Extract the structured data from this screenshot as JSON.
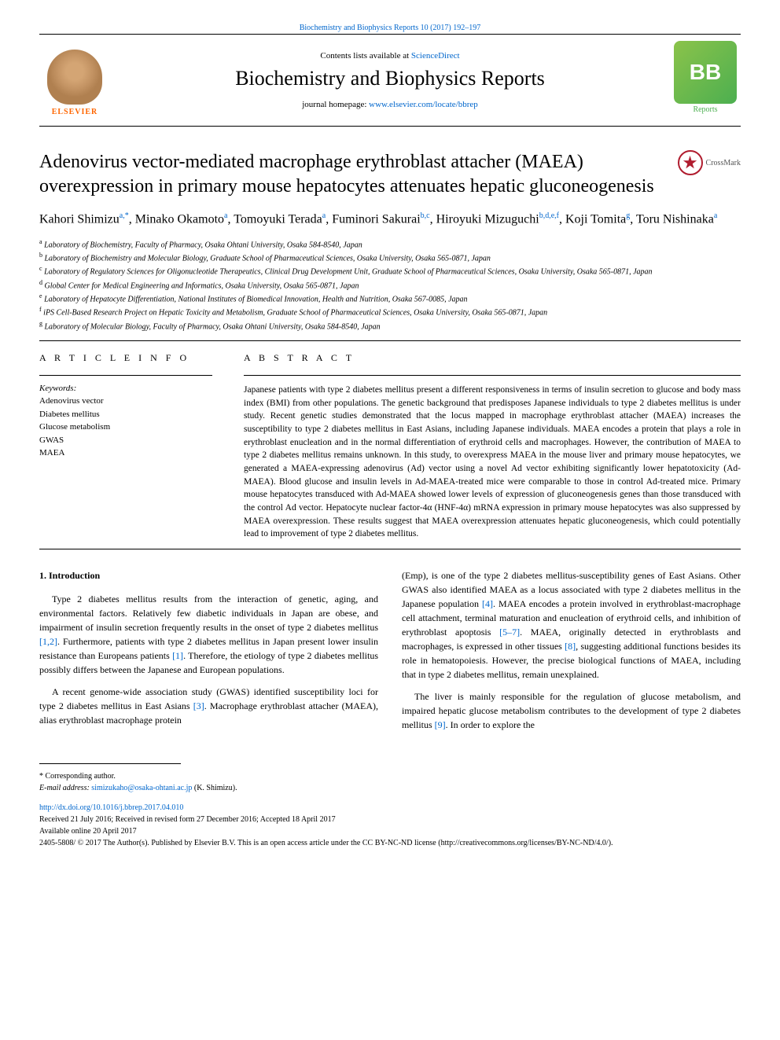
{
  "header": {
    "journal_ref": "Biochemistry and Biophysics Reports 10 (2017) 192–197",
    "contents_prefix": "Contents lists available at ",
    "contents_link": "ScienceDirect",
    "journal_name": "Biochemistry and Biophysics Reports",
    "homepage_prefix": "journal homepage: ",
    "homepage_url": "www.elsevier.com/locate/bbrep",
    "publisher_logo_text": "ELSEVIER",
    "bb_logo_text": "BB",
    "bb_logo_label": "Reports"
  },
  "crossmark_label": "CrossMark",
  "title": "Adenovirus vector-mediated macrophage erythroblast attacher (MAEA) overexpression in primary mouse hepatocytes attenuates hepatic gluconeogenesis",
  "authors_html": "Kahori Shimizu<sup>a,*</sup>, Minako Okamoto<sup>a</sup>, Tomoyuki Terada<sup>a</sup>, Fuminori Sakurai<sup>b,c</sup>, Hiroyuki Mizuguchi<sup>b,d,e,f</sup>, Koji Tomita<sup>g</sup>, Toru Nishinaka<sup>a</sup>",
  "affiliations": [
    {
      "sup": "a",
      "text": "Laboratory of Biochemistry, Faculty of Pharmacy, Osaka Ohtani University, Osaka 584-8540, Japan"
    },
    {
      "sup": "b",
      "text": "Laboratory of Biochemistry and Molecular Biology, Graduate School of Pharmaceutical Sciences, Osaka University, Osaka 565-0871, Japan"
    },
    {
      "sup": "c",
      "text": "Laboratory of Regulatory Sciences for Oligonucleotide Therapeutics, Clinical Drug Development Unit, Graduate School of Pharmaceutical Sciences, Osaka University, Osaka 565-0871, Japan"
    },
    {
      "sup": "d",
      "text": "Global Center for Medical Engineering and Informatics, Osaka University, Osaka 565-0871, Japan"
    },
    {
      "sup": "e",
      "text": "Laboratory of Hepatocyte Differentiation, National Institutes of Biomedical Innovation, Health and Nutrition, Osaka 567-0085, Japan"
    },
    {
      "sup": "f",
      "text": "iPS Cell-Based Research Project on Hepatic Toxicity and Metabolism, Graduate School of Pharmaceutical Sciences, Osaka University, Osaka 565-0871, Japan"
    },
    {
      "sup": "g",
      "text": "Laboratory of Molecular Biology, Faculty of Pharmacy, Osaka Ohtani University, Osaka 584-8540, Japan"
    }
  ],
  "article_info": {
    "heading": "A R T I C L E  I N F O",
    "keywords_label": "Keywords:",
    "keywords": [
      "Adenovirus vector",
      "Diabetes mellitus",
      "Glucose metabolism",
      "GWAS",
      "MAEA"
    ]
  },
  "abstract": {
    "heading": "A B S T R A C T",
    "text": "Japanese patients with type 2 diabetes mellitus present a different responsiveness in terms of insulin secretion to glucose and body mass index (BMI) from other populations. The genetic background that predisposes Japanese individuals to type 2 diabetes mellitus is under study. Recent genetic studies demonstrated that the locus mapped in macrophage erythroblast attacher (MAEA) increases the susceptibility to type 2 diabetes mellitus in East Asians, including Japanese individuals. MAEA encodes a protein that plays a role in erythroblast enucleation and in the normal differentiation of erythroid cells and macrophages. However, the contribution of MAEA to type 2 diabetes mellitus remains unknown. In this study, to overexpress MAEA in the mouse liver and primary mouse hepatocytes, we generated a MAEA-expressing adenovirus (Ad) vector using a novel Ad vector exhibiting significantly lower hepatotoxicity (Ad-MAEA). Blood glucose and insulin levels in Ad-MAEA-treated mice were comparable to those in control Ad-treated mice. Primary mouse hepatocytes transduced with Ad-MAEA showed lower levels of expression of gluconeogenesis genes than those transduced with the control Ad vector. Hepatocyte nuclear factor-4α (HNF-4α) mRNA expression in primary mouse hepatocytes was also suppressed by MAEA overexpression. These results suggest that MAEA overexpression attenuates hepatic gluconeogenesis, which could potentially lead to improvement of type 2 diabetes mellitus."
  },
  "body": {
    "section_heading": "1. Introduction",
    "col1_p1": "Type 2 diabetes mellitus results from the interaction of genetic, aging, and environmental factors. Relatively few diabetic individuals in Japan are obese, and impairment of insulin secretion frequently results in the onset of type 2 diabetes mellitus [1,2]. Furthermore, patients with type 2 diabetes mellitus in Japan present lower insulin resistance than Europeans patients [1]. Therefore, the etiology of type 2 diabetes mellitus possibly differs between the Japanese and European populations.",
    "col1_p2": "A recent genome-wide association study (GWAS) identified susceptibility loci for type 2 diabetes mellitus in East Asians [3]. Macrophage erythroblast attacher (MAEA), alias erythroblast macrophage protein",
    "col2_p1": "(Emp), is one of the type 2 diabetes mellitus-susceptibility genes of East Asians. Other GWAS also identified MAEA as a locus associated with type 2 diabetes mellitus in the Japanese population [4]. MAEA encodes a protein involved in erythroblast-macrophage cell attachment, terminal maturation and enucleation of erythroid cells, and inhibition of erythroblast apoptosis [5–7]. MAEA, originally detected in erythroblasts and macrophages, is expressed in other tissues [8], suggesting additional functions besides its role in hematopoiesis. However, the precise biological functions of MAEA, including that in type 2 diabetes mellitus, remain unexplained.",
    "col2_p2": "The liver is mainly responsible for the regulation of glucose metabolism, and impaired hepatic glucose metabolism contributes to the development of type 2 diabetes mellitus [9]. In order to explore the"
  },
  "footer": {
    "corresponding": "* Corresponding author.",
    "email_label": "E-mail address: ",
    "email": "simizukaho@osaka-ohtani.ac.jp",
    "email_suffix": " (K. Shimizu).",
    "doi": "http://dx.doi.org/10.1016/j.bbrep.2017.04.010",
    "received": "Received 21 July 2016; Received in revised form 27 December 2016; Accepted 18 April 2017",
    "available": "Available online 20 April 2017",
    "copyright": "2405-5808/ © 2017 The Author(s). Published by Elsevier B.V. This is an open access article under the CC BY-NC-ND license (http://creativecommons.org/licenses/BY-NC-ND/4.0/)."
  },
  "colors": {
    "link": "#0066cc",
    "elsevier_orange": "#ff6600",
    "bb_green_light": "#8bc34a",
    "bb_green_dark": "#4caf50",
    "crossmark_red": "#b01c2e",
    "text": "#000000",
    "background": "#ffffff"
  },
  "typography": {
    "title_fontsize": 24,
    "journal_name_fontsize": 26,
    "authors_fontsize": 16,
    "body_fontsize": 12,
    "abstract_fontsize": 11.5,
    "affiliation_fontsize": 10,
    "footer_fontsize": 10
  }
}
